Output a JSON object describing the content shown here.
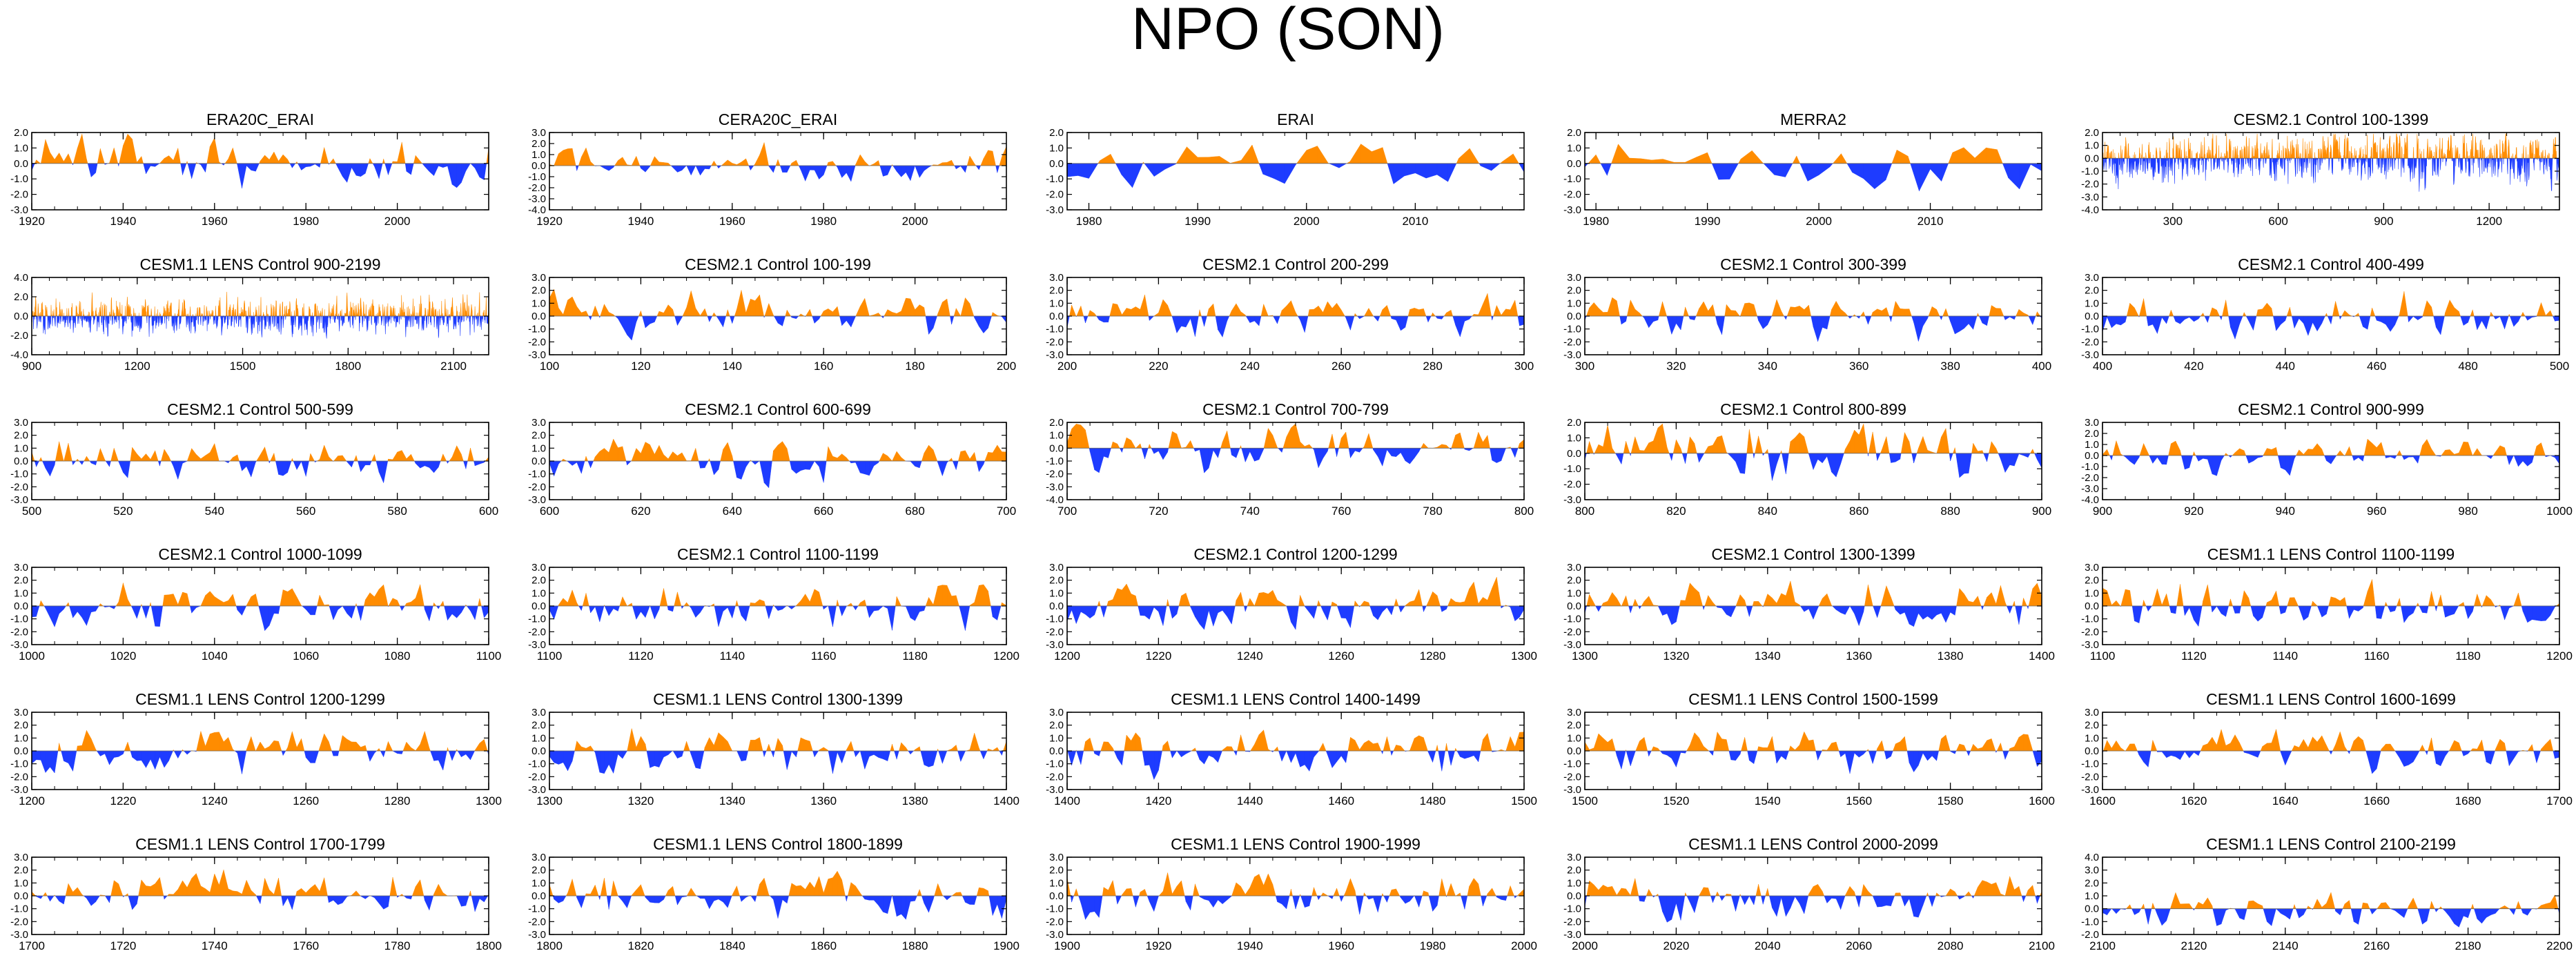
{
  "figure": {
    "title": "NPO (SON)"
  },
  "colors": {
    "positive": "#ff8c00",
    "negative": "#1e3cff",
    "axis": "#000000"
  },
  "chart_data": [
    {
      "type": "area",
      "title": "ERA20C_ERAI",
      "x_range": [
        1920,
        2020
      ],
      "ylim": [
        -3.0,
        2.0
      ],
      "y_ticks": [
        2.0,
        1.0,
        0.0,
        -1.0,
        -2.0,
        -3.0
      ],
      "x_ticks": [
        1920,
        1940,
        1960,
        1980,
        2000
      ],
      "values_per_step": 1,
      "seed": 11,
      "amp": 0.9
    },
    {
      "type": "area",
      "title": "CERA20C_ERAI",
      "x_range": [
        1920,
        2020
      ],
      "ylim": [
        -4.0,
        3.0
      ],
      "y_ticks": [
        3.0,
        2.0,
        1.0,
        0.0,
        -1.0,
        -2.0,
        -3.0,
        -4.0
      ],
      "x_ticks": [
        1920,
        1940,
        1960,
        1980,
        2000
      ],
      "values_per_step": 1,
      "seed": 12,
      "amp": 0.9
    },
    {
      "type": "area",
      "title": "ERAI",
      "x_range": [
        1978,
        2020
      ],
      "ylim": [
        -3.0,
        2.0
      ],
      "y_ticks": [
        2.0,
        1.0,
        0.0,
        -1.0,
        -2.0,
        -3.0
      ],
      "x_ticks": [
        1980,
        1990,
        2000,
        2010
      ],
      "values_per_step": 1,
      "seed": 13,
      "amp": 1.0
    },
    {
      "type": "area",
      "title": "MERRA2",
      "x_range": [
        1979,
        2020
      ],
      "ylim": [
        -3.0,
        2.0
      ],
      "y_ticks": [
        2.0,
        1.0,
        0.0,
        -1.0,
        -2.0,
        -3.0
      ],
      "x_ticks": [
        1980,
        1990,
        2000,
        2010
      ],
      "values_per_step": 1,
      "seed": 14,
      "amp": 1.0
    },
    {
      "type": "area",
      "title": "CESM2.1 Control 100-1399",
      "x_range": [
        100,
        1400
      ],
      "ylim": [
        -4.0,
        2.0
      ],
      "y_ticks": [
        2.0,
        1.0,
        0.0,
        -1.0,
        -2.0,
        -3.0,
        -4.0
      ],
      "x_ticks": [
        300,
        600,
        900,
        1200
      ],
      "values_per_step": 1,
      "seed": 15,
      "amp": 1.0
    },
    {
      "type": "area",
      "title": "CESM1.1 LENS Control 900-2199",
      "x_range": [
        900,
        2200
      ],
      "ylim": [
        -4.0,
        4.0
      ],
      "y_ticks": [
        4.0,
        2.0,
        0.0,
        -2.0,
        -4.0
      ],
      "x_ticks": [
        900,
        1200,
        1500,
        1800,
        2100
      ],
      "values_per_step": 1,
      "seed": 21,
      "amp": 1.0
    },
    {
      "type": "area",
      "title": "CESM2.1 Control 100-199",
      "x_range": [
        100,
        200
      ],
      "ylim": [
        -3.0,
        3.0
      ],
      "y_ticks": [
        3.0,
        2.0,
        1.0,
        0.0,
        -1.0,
        -2.0,
        -3.0
      ],
      "x_ticks": [
        100,
        120,
        140,
        160,
        180,
        200
      ],
      "values_per_step": 1,
      "seed": 22,
      "amp": 0.9
    },
    {
      "type": "area",
      "title": "CESM2.1 Control 200-299",
      "x_range": [
        200,
        300
      ],
      "ylim": [
        -3.0,
        3.0
      ],
      "y_ticks": [
        3.0,
        2.0,
        1.0,
        0.0,
        -1.0,
        -2.0,
        -3.0
      ],
      "x_ticks": [
        200,
        220,
        240,
        260,
        280,
        300
      ],
      "values_per_step": 1,
      "seed": 23,
      "amp": 0.9
    },
    {
      "type": "area",
      "title": "CESM2.1 Control 300-399",
      "x_range": [
        300,
        400
      ],
      "ylim": [
        -3.0,
        3.0
      ],
      "y_ticks": [
        3.0,
        2.0,
        1.0,
        0.0,
        -1.0,
        -2.0,
        -3.0
      ],
      "x_ticks": [
        300,
        320,
        340,
        360,
        380,
        400
      ],
      "values_per_step": 1,
      "seed": 24,
      "amp": 0.9
    },
    {
      "type": "area",
      "title": "CESM2.1 Control 400-499",
      "x_range": [
        400,
        500
      ],
      "ylim": [
        -3.0,
        3.0
      ],
      "y_ticks": [
        3.0,
        2.0,
        1.0,
        0.0,
        -1.0,
        -2.0,
        -3.0
      ],
      "x_ticks": [
        400,
        420,
        440,
        460,
        480,
        500
      ],
      "values_per_step": 1,
      "seed": 25,
      "amp": 0.9
    },
    {
      "type": "area",
      "title": "CESM2.1 Control 500-599",
      "x_range": [
        500,
        600
      ],
      "ylim": [
        -3.0,
        3.0
      ],
      "y_ticks": [
        3.0,
        2.0,
        1.0,
        0.0,
        -1.0,
        -2.0,
        -3.0
      ],
      "x_ticks": [
        500,
        520,
        540,
        560,
        580,
        600
      ],
      "values_per_step": 1,
      "seed": 31,
      "amp": 0.9
    },
    {
      "type": "area",
      "title": "CESM2.1 Control 600-699",
      "x_range": [
        600,
        700
      ],
      "ylim": [
        -3.0,
        3.0
      ],
      "y_ticks": [
        3.0,
        2.0,
        1.0,
        0.0,
        -1.0,
        -2.0,
        -3.0
      ],
      "x_ticks": [
        600,
        620,
        640,
        660,
        680,
        700
      ],
      "values_per_step": 1,
      "seed": 32,
      "amp": 0.9
    },
    {
      "type": "area",
      "title": "CESM2.1 Control 700-799",
      "x_range": [
        700,
        800
      ],
      "ylim": [
        -4.0,
        2.0
      ],
      "y_ticks": [
        2.0,
        1.0,
        0.0,
        -1.0,
        -2.0,
        -3.0,
        -4.0
      ],
      "x_ticks": [
        700,
        720,
        740,
        760,
        780,
        800
      ],
      "values_per_step": 1,
      "seed": 33,
      "amp": 0.9
    },
    {
      "type": "area",
      "title": "CESM2.1 Control 800-899",
      "x_range": [
        800,
        900
      ],
      "ylim": [
        -3.0,
        2.0
      ],
      "y_ticks": [
        2.0,
        1.0,
        0.0,
        -1.0,
        -2.0,
        -3.0
      ],
      "x_ticks": [
        800,
        820,
        840,
        860,
        880,
        900
      ],
      "values_per_step": 1,
      "seed": 34,
      "amp": 0.9
    },
    {
      "type": "area",
      "title": "CESM2.1 Control 900-999",
      "x_range": [
        900,
        1000
      ],
      "ylim": [
        -4.0,
        3.0
      ],
      "y_ticks": [
        3.0,
        2.0,
        1.0,
        0.0,
        -1.0,
        -2.0,
        -3.0,
        -4.0
      ],
      "x_ticks": [
        900,
        920,
        940,
        960,
        980,
        1000
      ],
      "values_per_step": 1,
      "seed": 35,
      "amp": 0.9
    },
    {
      "type": "area",
      "title": "CESM2.1 Control 1000-1099",
      "x_range": [
        1000,
        1100
      ],
      "ylim": [
        -3.0,
        3.0
      ],
      "y_ticks": [
        3.0,
        2.0,
        1.0,
        0.0,
        -1.0,
        -2.0,
        -3.0
      ],
      "x_ticks": [
        1000,
        1020,
        1040,
        1060,
        1080,
        1100
      ],
      "values_per_step": 1,
      "seed": 41,
      "amp": 0.9
    },
    {
      "type": "area",
      "title": "CESM2.1 Control 1100-1199",
      "x_range": [
        1100,
        1200
      ],
      "ylim": [
        -3.0,
        3.0
      ],
      "y_ticks": [
        3.0,
        2.0,
        1.0,
        0.0,
        -1.0,
        -2.0,
        -3.0
      ],
      "x_ticks": [
        1100,
        1120,
        1140,
        1160,
        1180,
        1200
      ],
      "values_per_step": 1,
      "seed": 42,
      "amp": 0.9
    },
    {
      "type": "area",
      "title": "CESM2.1 Control 1200-1299",
      "x_range": [
        1200,
        1300
      ],
      "ylim": [
        -3.0,
        3.0
      ],
      "y_ticks": [
        3.0,
        2.0,
        1.0,
        0.0,
        -1.0,
        -2.0,
        -3.0
      ],
      "x_ticks": [
        1200,
        1220,
        1240,
        1260,
        1280,
        1300
      ],
      "values_per_step": 1,
      "seed": 43,
      "amp": 0.9
    },
    {
      "type": "area",
      "title": "CESM2.1 Control 1300-1399",
      "x_range": [
        1300,
        1400
      ],
      "ylim": [
        -3.0,
        3.0
      ],
      "y_ticks": [
        3.0,
        2.0,
        1.0,
        0.0,
        -1.0,
        -2.0,
        -3.0
      ],
      "x_ticks": [
        1300,
        1320,
        1340,
        1360,
        1380,
        1400
      ],
      "values_per_step": 1,
      "seed": 44,
      "amp": 0.9
    },
    {
      "type": "area",
      "title": "CESM1.1 LENS Control 1100-1199",
      "x_range": [
        1100,
        1200
      ],
      "ylim": [
        -3.0,
        3.0
      ],
      "y_ticks": [
        3.0,
        2.0,
        1.0,
        0.0,
        -1.0,
        -2.0,
        -3.0
      ],
      "x_ticks": [
        1100,
        1120,
        1140,
        1160,
        1180,
        1200
      ],
      "values_per_step": 1,
      "seed": 45,
      "amp": 0.9
    },
    {
      "type": "area",
      "title": "CESM1.1 LENS Control 1200-1299",
      "x_range": [
        1200,
        1300
      ],
      "ylim": [
        -3.0,
        3.0
      ],
      "y_ticks": [
        3.0,
        2.0,
        1.0,
        0.0,
        -1.0,
        -2.0,
        -3.0
      ],
      "x_ticks": [
        1200,
        1220,
        1240,
        1260,
        1280,
        1300
      ],
      "values_per_step": 1,
      "seed": 51,
      "amp": 0.9
    },
    {
      "type": "area",
      "title": "CESM1.1 LENS Control 1300-1399",
      "x_range": [
        1300,
        1400
      ],
      "ylim": [
        -3.0,
        3.0
      ],
      "y_ticks": [
        3.0,
        2.0,
        1.0,
        0.0,
        -1.0,
        -2.0,
        -3.0
      ],
      "x_ticks": [
        1300,
        1320,
        1340,
        1360,
        1380,
        1400
      ],
      "values_per_step": 1,
      "seed": 52,
      "amp": 0.9
    },
    {
      "type": "area",
      "title": "CESM1.1 LENS Control 1400-1499",
      "x_range": [
        1400,
        1500
      ],
      "ylim": [
        -3.0,
        3.0
      ],
      "y_ticks": [
        3.0,
        2.0,
        1.0,
        0.0,
        -1.0,
        -2.0,
        -3.0
      ],
      "x_ticks": [
        1400,
        1420,
        1440,
        1460,
        1480,
        1500
      ],
      "values_per_step": 1,
      "seed": 53,
      "amp": 0.9
    },
    {
      "type": "area",
      "title": "CESM1.1 LENS Control 1500-1599",
      "x_range": [
        1500,
        1600
      ],
      "ylim": [
        -3.0,
        3.0
      ],
      "y_ticks": [
        3.0,
        2.0,
        1.0,
        0.0,
        -1.0,
        -2.0,
        -3.0
      ],
      "x_ticks": [
        1500,
        1520,
        1540,
        1560,
        1580,
        1600
      ],
      "values_per_step": 1,
      "seed": 54,
      "amp": 0.9
    },
    {
      "type": "area",
      "title": "CESM1.1 LENS Control 1600-1699",
      "x_range": [
        1600,
        1700
      ],
      "ylim": [
        -3.0,
        3.0
      ],
      "y_ticks": [
        3.0,
        2.0,
        1.0,
        0.0,
        -1.0,
        -2.0,
        -3.0
      ],
      "x_ticks": [
        1600,
        1620,
        1640,
        1660,
        1680,
        1700
      ],
      "values_per_step": 1,
      "seed": 55,
      "amp": 0.9
    },
    {
      "type": "area",
      "title": "CESM1.1 LENS Control 1700-1799",
      "x_range": [
        1700,
        1800
      ],
      "ylim": [
        -3.0,
        3.0
      ],
      "y_ticks": [
        3.0,
        2.0,
        1.0,
        0.0,
        -1.0,
        -2.0,
        -3.0
      ],
      "x_ticks": [
        1700,
        1720,
        1740,
        1760,
        1780,
        1800
      ],
      "values_per_step": 1,
      "seed": 61,
      "amp": 0.9
    },
    {
      "type": "area",
      "title": "CESM1.1 LENS Control 1800-1899",
      "x_range": [
        1800,
        1900
      ],
      "ylim": [
        -3.0,
        3.0
      ],
      "y_ticks": [
        3.0,
        2.0,
        1.0,
        0.0,
        -1.0,
        -2.0,
        -3.0
      ],
      "x_ticks": [
        1800,
        1820,
        1840,
        1860,
        1880,
        1900
      ],
      "values_per_step": 1,
      "seed": 62,
      "amp": 0.9
    },
    {
      "type": "area",
      "title": "CESM1.1 LENS Control 1900-1999",
      "x_range": [
        1900,
        2000
      ],
      "ylim": [
        -3.0,
        3.0
      ],
      "y_ticks": [
        3.0,
        2.0,
        1.0,
        0.0,
        -1.0,
        -2.0,
        -3.0
      ],
      "x_ticks": [
        1900,
        1920,
        1940,
        1960,
        1980,
        2000
      ],
      "values_per_step": 1,
      "seed": 63,
      "amp": 0.9
    },
    {
      "type": "area",
      "title": "CESM1.1 LENS Control 2000-2099",
      "x_range": [
        2000,
        2100
      ],
      "ylim": [
        -3.0,
        3.0
      ],
      "y_ticks": [
        3.0,
        2.0,
        1.0,
        0.0,
        -1.0,
        -2.0,
        -3.0
      ],
      "x_ticks": [
        2000,
        2020,
        2040,
        2060,
        2080,
        2100
      ],
      "values_per_step": 1,
      "seed": 64,
      "amp": 0.9
    },
    {
      "type": "area",
      "title": "CESM1.1 LENS Control 2100-2199",
      "x_range": [
        2100,
        2200
      ],
      "ylim": [
        -2.0,
        4.0
      ],
      "y_ticks": [
        4.0,
        3.0,
        2.0,
        1.0,
        0.0,
        -1.0,
        -2.0
      ],
      "x_ticks": [
        2100,
        2120,
        2140,
        2160,
        2180,
        2200
      ],
      "values_per_step": 1,
      "seed": 65,
      "amp": 0.9
    }
  ]
}
